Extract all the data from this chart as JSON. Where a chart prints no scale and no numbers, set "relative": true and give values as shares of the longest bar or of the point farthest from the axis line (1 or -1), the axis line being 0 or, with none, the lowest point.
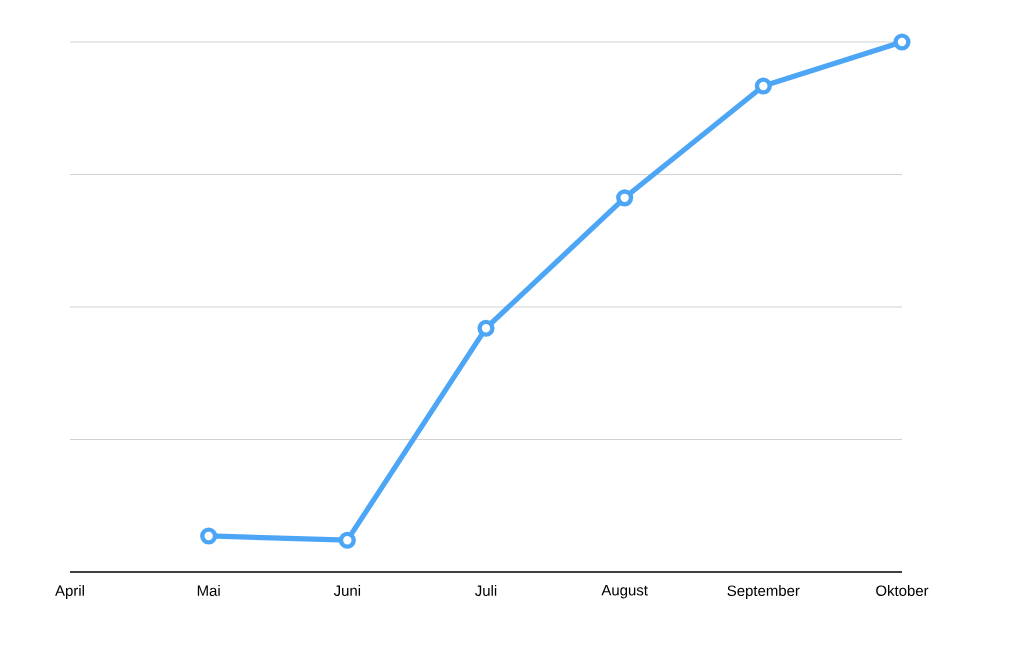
{
  "chart_data": {
    "type": "line",
    "relative": true,
    "categories": [
      "April",
      "Mai",
      "Juni",
      "Juli",
      "August",
      "September",
      "Oktober"
    ],
    "values": [
      null,
      0.068,
      0.06,
      0.46,
      0.706,
      0.917,
      1
    ],
    "color": "#4da6f5",
    "grid": "y",
    "marker": "circle",
    "line_style": "solid"
  }
}
